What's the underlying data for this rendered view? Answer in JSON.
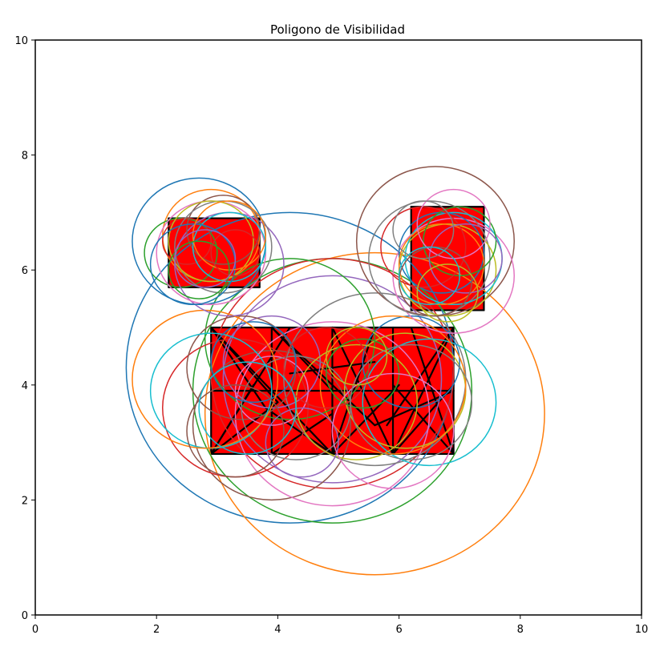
{
  "chart_data": {
    "type": "geometric-plot",
    "title": "Poligono de Visibilidad",
    "xlabel": "",
    "ylabel": "",
    "xlim": [
      0,
      10
    ],
    "ylim": [
      0,
      10
    ],
    "x_ticks": [
      "0",
      "2",
      "4",
      "6",
      "8",
      "10"
    ],
    "y_ticks": [
      "0",
      "2",
      "4",
      "6",
      "8",
      "10"
    ],
    "x_tick_values": [
      0,
      2,
      4,
      6,
      8,
      10
    ],
    "y_tick_values": [
      0,
      2,
      4,
      6,
      8,
      10
    ],
    "grid": false,
    "obstacles": [
      {
        "name": "obstacle-large",
        "xmin": 2.9,
        "xmax": 6.9,
        "ymin": 2.8,
        "ymax": 5.0,
        "fill": "#ff0000"
      },
      {
        "name": "obstacle-left",
        "xmin": 2.2,
        "xmax": 3.7,
        "ymin": 5.7,
        "ymax": 6.9,
        "fill": "#ff0000"
      },
      {
        "name": "obstacle-right",
        "xmin": 6.2,
        "xmax": 7.4,
        "ymin": 5.3,
        "ymax": 7.1,
        "fill": "#ff0000"
      }
    ],
    "circle_colors": [
      "#1f77b4",
      "#ff7f0e",
      "#2ca02c",
      "#d62728",
      "#9467bd",
      "#8c564b",
      "#e377c2",
      "#7f7f7f",
      "#bcbd22",
      "#17becf"
    ],
    "circles": [
      [
        4.2,
        4.3,
        2.7
      ],
      [
        5.6,
        3.5,
        2.8
      ],
      [
        4.9,
        3.9,
        2.3
      ],
      [
        4.9,
        4.2,
        2.0
      ],
      [
        4.9,
        4.1,
        1.8
      ],
      [
        3.9,
        3.3,
        1.3
      ],
      [
        4.9,
        3.5,
        1.6
      ],
      [
        5.6,
        4.1,
        1.5
      ],
      [
        6.1,
        3.9,
        1.0
      ],
      [
        6.5,
        3.7,
        1.1
      ],
      [
        6.2,
        4.4,
        0.8
      ],
      [
        5.9,
        4.0,
        1.2
      ],
      [
        4.2,
        4.8,
        1.4
      ],
      [
        3.3,
        3.6,
        1.2
      ],
      [
        3.9,
        4.4,
        0.8
      ],
      [
        3.4,
        4.3,
        0.9
      ],
      [
        3.9,
        3.9,
        0.6
      ],
      [
        4.3,
        3.6,
        0.9
      ],
      [
        5.3,
        3.7,
        1.0
      ],
      [
        2.9,
        3.9,
        1.0
      ],
      [
        3.6,
        4.4,
        0.7
      ],
      [
        2.8,
        4.1,
        1.2
      ],
      [
        5.4,
        4.2,
        0.6
      ],
      [
        4.8,
        4.3,
        0.7
      ],
      [
        4.4,
        3.0,
        0.6
      ],
      [
        3.3,
        3.2,
        0.8
      ],
      [
        5.9,
        3.2,
        1.0
      ],
      [
        6.2,
        3.7,
        1.0
      ],
      [
        5.3,
        4.5,
        0.5
      ],
      [
        3.5,
        3.6,
        0.8
      ],
      [
        2.7,
        6.5,
        1.1
      ],
      [
        2.9,
        6.6,
        0.8
      ],
      [
        2.4,
        6.3,
        0.6
      ],
      [
        2.5,
        6.5,
        0.4
      ],
      [
        3.2,
        6.1,
        0.9
      ],
      [
        3.1,
        6.7,
        0.6
      ],
      [
        2.9,
        6.3,
        0.9
      ],
      [
        3.1,
        6.4,
        0.8
      ],
      [
        2.9,
        6.5,
        0.7
      ],
      [
        3.2,
        6.4,
        0.6
      ],
      [
        2.6,
        6.1,
        0.7
      ],
      [
        3.2,
        6.6,
        0.6
      ],
      [
        2.7,
        6.0,
        0.5
      ],
      [
        3.3,
        6.3,
        0.4
      ],
      [
        2.8,
        6.2,
        0.5
      ],
      [
        6.6,
        6.5,
        1.3
      ],
      [
        6.9,
        5.9,
        1.0
      ],
      [
        6.5,
        6.2,
        1.0
      ],
      [
        6.8,
        6.0,
        0.8
      ],
      [
        6.9,
        6.2,
        0.8
      ],
      [
        6.7,
        6.3,
        0.7
      ],
      [
        6.7,
        6.1,
        0.7
      ],
      [
        7.0,
        6.5,
        0.6
      ],
      [
        6.4,
        6.4,
        0.7
      ],
      [
        7.1,
        6.2,
        0.6
      ],
      [
        6.6,
        5.8,
        0.6
      ],
      [
        6.9,
        6.8,
        0.6
      ],
      [
        6.4,
        6.7,
        0.5
      ],
      [
        6.8,
        5.6,
        0.5
      ],
      [
        6.5,
        5.9,
        0.5
      ]
    ],
    "edges": [
      [
        [
          2.9,
          2.8
        ],
        [
          6.9,
          2.8
        ]
      ],
      [
        [
          2.9,
          5.0
        ],
        [
          6.9,
          5.0
        ]
      ],
      [
        [
          2.9,
          2.8
        ],
        [
          2.9,
          5.0
        ]
      ],
      [
        [
          6.9,
          2.8
        ],
        [
          6.9,
          5.0
        ]
      ],
      [
        [
          2.9,
          2.8
        ],
        [
          4.2,
          5.0
        ]
      ],
      [
        [
          2.9,
          2.8
        ],
        [
          3.6,
          4.0
        ]
      ],
      [
        [
          2.9,
          2.8
        ],
        [
          4.0,
          3.7
        ]
      ],
      [
        [
          2.9,
          5.0
        ],
        [
          4.0,
          3.7
        ]
      ],
      [
        [
          2.9,
          5.0
        ],
        [
          3.8,
          3.6
        ]
      ],
      [
        [
          2.9,
          5.0
        ],
        [
          4.9,
          2.8
        ]
      ],
      [
        [
          3.9,
          2.8
        ],
        [
          3.9,
          5.0
        ]
      ],
      [
        [
          3.9,
          2.8
        ],
        [
          4.9,
          3.5
        ]
      ],
      [
        [
          4.9,
          2.8
        ],
        [
          4.9,
          5.0
        ]
      ],
      [
        [
          4.9,
          2.8
        ],
        [
          5.6,
          5.0
        ]
      ],
      [
        [
          4.9,
          2.8
        ],
        [
          6.0,
          4.0
        ]
      ],
      [
        [
          5.9,
          2.8
        ],
        [
          5.9,
          5.0
        ]
      ],
      [
        [
          5.9,
          2.8
        ],
        [
          6.9,
          4.0
        ]
      ],
      [
        [
          6.9,
          2.8
        ],
        [
          5.9,
          4.0
        ]
      ],
      [
        [
          6.9,
          5.0
        ],
        [
          5.8,
          3.3
        ]
      ],
      [
        [
          6.9,
          5.0
        ],
        [
          5.9,
          2.8
        ]
      ],
      [
        [
          3.9,
          5.0
        ],
        [
          4.9,
          3.9
        ]
      ],
      [
        [
          3.9,
          5.0
        ],
        [
          5.6,
          3.3
        ]
      ],
      [
        [
          2.9,
          3.9
        ],
        [
          6.9,
          3.9
        ]
      ],
      [
        [
          4.2,
          4.2
        ],
        [
          5.6,
          4.4
        ]
      ],
      [
        [
          5.6,
          3.3
        ],
        [
          6.9,
          3.9
        ]
      ],
      [
        [
          3.8,
          3.6
        ],
        [
          4.9,
          2.8
        ]
      ],
      [
        [
          4.9,
          5.0
        ],
        [
          5.9,
          2.8
        ]
      ],
      [
        [
          6.9,
          2.8
        ],
        [
          6.2,
          5.0
        ]
      ],
      [
        [
          2.2,
          5.7
        ],
        [
          3.7,
          5.7
        ]
      ],
      [
        [
          2.2,
          6.9
        ],
        [
          3.7,
          6.9
        ]
      ],
      [
        [
          2.2,
          5.7
        ],
        [
          2.2,
          6.9
        ]
      ],
      [
        [
          3.7,
          5.7
        ],
        [
          3.7,
          6.9
        ]
      ],
      [
        [
          6.2,
          5.3
        ],
        [
          7.4,
          5.3
        ]
      ],
      [
        [
          6.2,
          7.1
        ],
        [
          7.4,
          7.1
        ]
      ],
      [
        [
          6.2,
          5.3
        ],
        [
          6.2,
          7.1
        ]
      ],
      [
        [
          7.4,
          5.3
        ],
        [
          7.4,
          7.1
        ]
      ]
    ]
  }
}
